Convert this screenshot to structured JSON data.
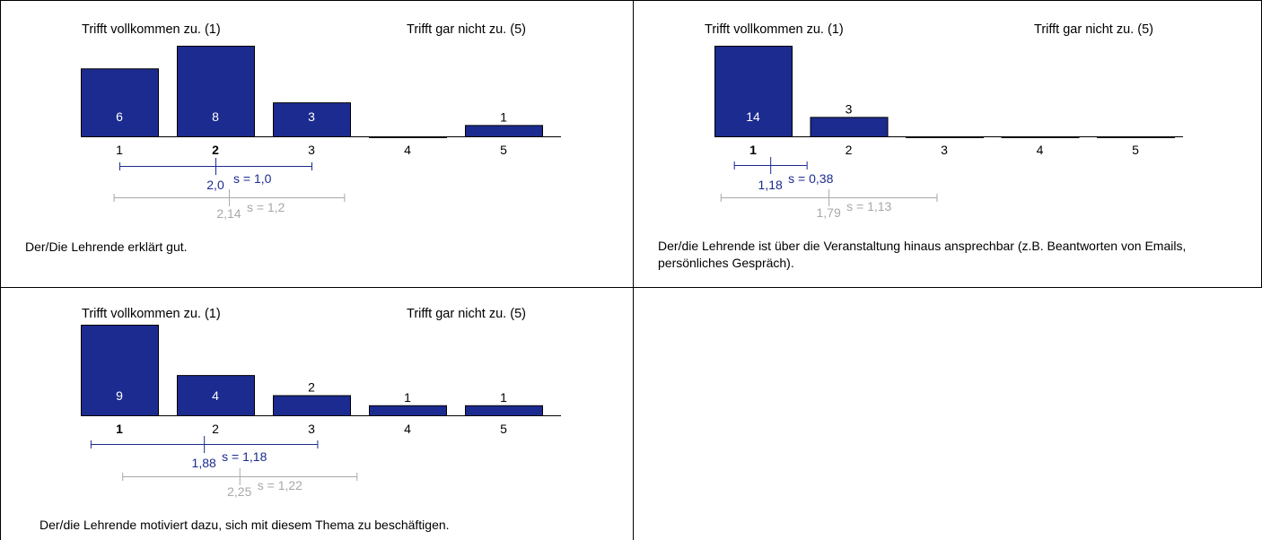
{
  "colors": {
    "bar": "#1b2b8f",
    "bar_stroke": "#000000",
    "own_stat": "#1b2b8f",
    "ref_stat": "#a8a8a8",
    "grid_line": "#000000"
  },
  "chart_data": [
    {
      "type": "bar",
      "scale_left_label": "Trifft vollkommen zu. (1)",
      "scale_right_label": "Trifft gar nicht zu. (5)",
      "categories": [
        "1",
        "2",
        "3",
        "4",
        "5"
      ],
      "values": [
        6,
        8,
        3,
        0,
        1
      ],
      "value_labels": [
        "6",
        "8",
        "3",
        "",
        "1"
      ],
      "median_category": "2",
      "mean": 2.0,
      "mean_label": "2,0",
      "sd": 1.0,
      "sd_label": "s = 1,0",
      "ref_mean": 2.14,
      "ref_mean_label": "2,14",
      "ref_sd": 1.2,
      "ref_sd_label": "s = 1,2",
      "question": "Der/Die Lehrende erklärt gut."
    },
    {
      "type": "bar",
      "scale_left_label": "Trifft vollkommen zu. (1)",
      "scale_right_label": "Trifft gar nicht zu. (5)",
      "categories": [
        "1",
        "2",
        "3",
        "4",
        "5"
      ],
      "values": [
        14,
        3,
        0,
        0,
        0
      ],
      "value_labels": [
        "14",
        "3",
        "",
        "",
        ""
      ],
      "median_category": "1",
      "mean": 1.18,
      "mean_label": "1,18",
      "sd": 0.38,
      "sd_label": "s = 0,38",
      "ref_mean": 1.79,
      "ref_mean_label": "1,79",
      "ref_sd": 1.13,
      "ref_sd_label": "s = 1,13",
      "question": "Der/die Lehrende ist über die Veranstaltung hinaus ansprechbar (z.B. Beantworten von Emails, persönliches Gespräch)."
    },
    {
      "type": "bar",
      "scale_left_label": "Trifft vollkommen zu. (1)",
      "scale_right_label": "Trifft gar nicht zu. (5)",
      "categories": [
        "1",
        "2",
        "3",
        "4",
        "5"
      ],
      "values": [
        9,
        4,
        2,
        1,
        1
      ],
      "value_labels": [
        "9",
        "4",
        "2",
        "1",
        "1"
      ],
      "median_category": "1",
      "mean": 1.88,
      "mean_label": "1,88",
      "sd": 1.18,
      "sd_label": "s = 1,18",
      "ref_mean": 2.25,
      "ref_mean_label": "2,25",
      "ref_sd": 1.22,
      "ref_sd_label": "s = 1,22",
      "question": "Der/die Lehrende motiviert dazu, sich mit diesem Thema zu beschäftigen."
    }
  ]
}
